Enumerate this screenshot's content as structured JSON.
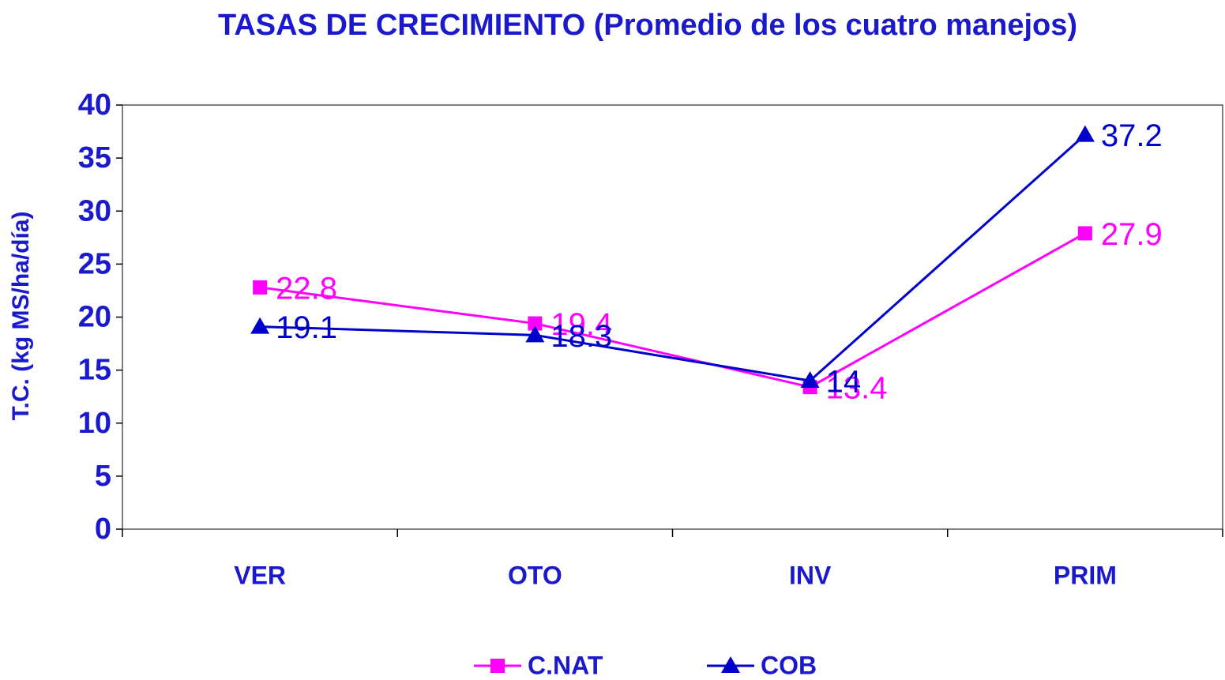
{
  "chart_data": {
    "type": "line",
    "title": "TASAS DE CRECIMIENTO (Promedio de los cuatro manejos)",
    "y_label": "T.C. (kg MS/ha/día)",
    "categories": [
      "VER",
      "OTO",
      "INV",
      "PRIM"
    ],
    "series": [
      {
        "name": "C.NAT",
        "color": "#ff00ff",
        "marker": "square",
        "values": [
          22.8,
          19.4,
          13.4,
          27.9
        ]
      },
      {
        "name": "COB",
        "color": "#0000cc",
        "marker": "triangle",
        "values": [
          19.1,
          18.3,
          14,
          37.2
        ]
      }
    ],
    "ylim": [
      0,
      40
    ],
    "yticks": [
      0,
      5,
      10,
      15,
      20,
      25,
      30,
      35,
      40
    ],
    "legend": "bottom"
  }
}
